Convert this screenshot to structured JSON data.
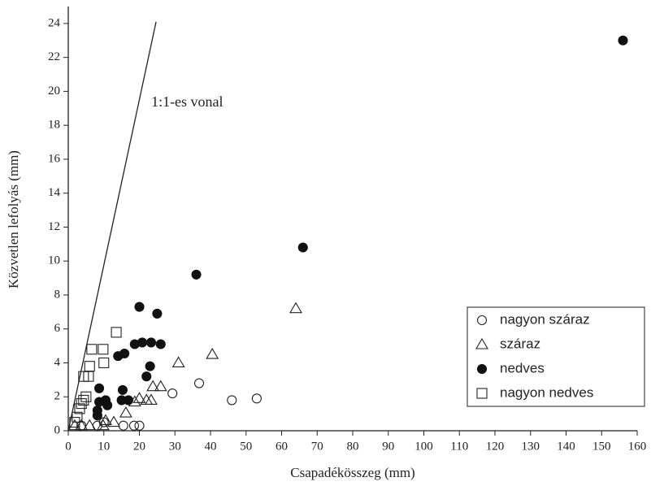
{
  "chart_data": {
    "type": "scatter",
    "x_label": "Csapadékösszeg (mm)",
    "y_label": "Közvetlen lefolyás (mm)",
    "xlim": [
      0,
      160
    ],
    "xticks": [
      0,
      10,
      20,
      30,
      40,
      50,
      60,
      70,
      80,
      90,
      100,
      110,
      120,
      130,
      140,
      150,
      160
    ],
    "ylim": [
      0,
      25
    ],
    "yticks": [
      0,
      2,
      4,
      6,
      8,
      10,
      12,
      14,
      16,
      18,
      20,
      22,
      24
    ],
    "legend": "lower right",
    "reference_line": {
      "label": "1:1-es vonal",
      "x": [
        0,
        24.7
      ],
      "y": [
        0,
        24.1
      ]
    },
    "series": [
      {
        "name": "nagyon száraz",
        "marker": "circle",
        "filled": false,
        "color": "#222222",
        "x": [
          15.5,
          18.5,
          20,
          29.3,
          36.8,
          46,
          53,
          8.2,
          10,
          3.7
        ],
        "y": [
          0.3,
          0.3,
          0.3,
          2.2,
          2.8,
          1.8,
          1.9,
          0.3,
          0.5,
          0.3
        ]
      },
      {
        "name": "száraz",
        "marker": "triangle",
        "filled": false,
        "color": "#222222",
        "x": [
          64,
          40.5,
          31,
          26,
          23.8,
          23.3,
          22,
          20,
          18.7,
          16.2,
          12.8,
          10.5,
          9.8,
          6,
          3.7,
          1.8
        ],
        "y": [
          7.2,
          4.5,
          4,
          2.6,
          2.6,
          1.8,
          1.8,
          1.9,
          1.7,
          1.05,
          0.5,
          0.6,
          0.3,
          0.3,
          0.3,
          0.3
        ]
      },
      {
        "name": "nedves",
        "marker": "circle",
        "filled": true,
        "color": "#111111",
        "x": [
          156,
          66,
          36,
          20,
          25,
          26,
          20.8,
          23.3,
          18.7,
          15.8,
          14,
          23,
          22,
          15.3,
          8.7,
          15,
          16.9,
          10.5,
          11,
          8.7,
          8.2,
          8.2
        ],
        "y": [
          23,
          10.8,
          9.2,
          7.3,
          6.9,
          5.1,
          5.2,
          5.2,
          5.1,
          4.55,
          4.4,
          3.8,
          3.2,
          2.4,
          2.5,
          1.8,
          1.8,
          1.8,
          1.5,
          1.7,
          1.2,
          0.9
        ]
      },
      {
        "name": "nagyon nedves",
        "marker": "square",
        "filled": false,
        "color": "#222222",
        "x": [
          13.5,
          6.6,
          9.8,
          10,
          6,
          4.3,
          5.7,
          5,
          4.3,
          3.7,
          3.2,
          2.5,
          1.8
        ],
        "y": [
          5.8,
          4.8,
          4.8,
          4.0,
          3.8,
          3.2,
          3.2,
          2,
          1.8,
          1.6,
          1.3,
          0.8,
          0.5
        ]
      }
    ]
  }
}
